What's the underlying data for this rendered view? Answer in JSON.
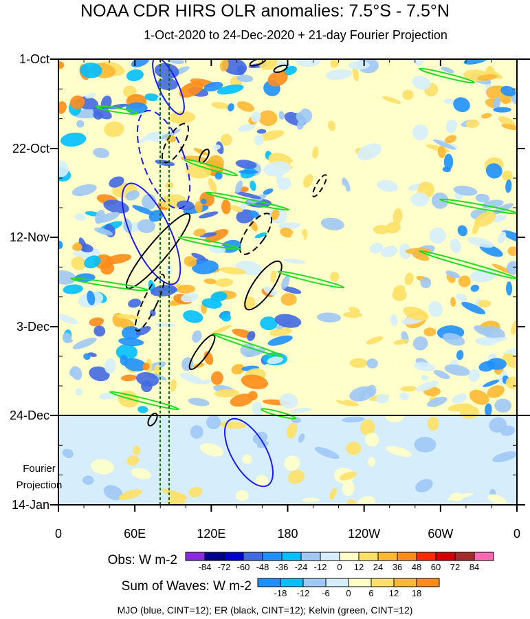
{
  "chart_data": {
    "type": "heatmap",
    "title": "NOAA CDR HIRS OLR anomalies: 7.5°S - 7.5°N",
    "subtitle": "1-Oct-2020 to 24-Dec-2020 + 21-day Fourier Projection",
    "x_ticks": [
      "0",
      "60E",
      "120E",
      "180",
      "120W",
      "60W",
      "0"
    ],
    "y_ticks": [
      "1-Oct",
      "22-Oct",
      "12-Nov",
      "3-Dec",
      "24-Dec",
      "14-Jan"
    ],
    "projection_label_line1": "Fourier",
    "projection_label_line2": "Projection",
    "obs_colorbar": {
      "title": "Obs: W m-2",
      "labels": [
        "-84",
        "-72",
        "-60",
        "-48",
        "-36",
        "-24",
        "-12",
        "0",
        "12",
        "24",
        "36",
        "48",
        "60",
        "72",
        "84"
      ],
      "colors": [
        "#8a2be2",
        "#00008b",
        "#0000cd",
        "#4169e1",
        "#1e90ff",
        "#00bfff",
        "#9fc8f5",
        "#d6eefc",
        "#ffffc8",
        "#ffe066",
        "#ffb833",
        "#ff8c1a",
        "#ff2a00",
        "#d40000",
        "#a52a2a",
        "#ff69b4"
      ]
    },
    "waves_colorbar": {
      "title": "Sum of Waves: W m-2",
      "labels": [
        "-18",
        "-12",
        "-6",
        "0",
        "6",
        "12",
        "18"
      ],
      "colors": [
        "#1e90ff",
        "#00bfff",
        "#9fc8f5",
        "#d6eefc",
        "#ffffc8",
        "#ffe066",
        "#ffb833",
        "#ff8c1a"
      ]
    },
    "contour_legend": "MJO (blue, CINT=12); ER (black, CINT=12); Kelvin (green, CINT=12)",
    "series_colors": {
      "mjo": "#1a1aff",
      "er": "#000000",
      "kelvin": "#22dd22"
    }
  }
}
